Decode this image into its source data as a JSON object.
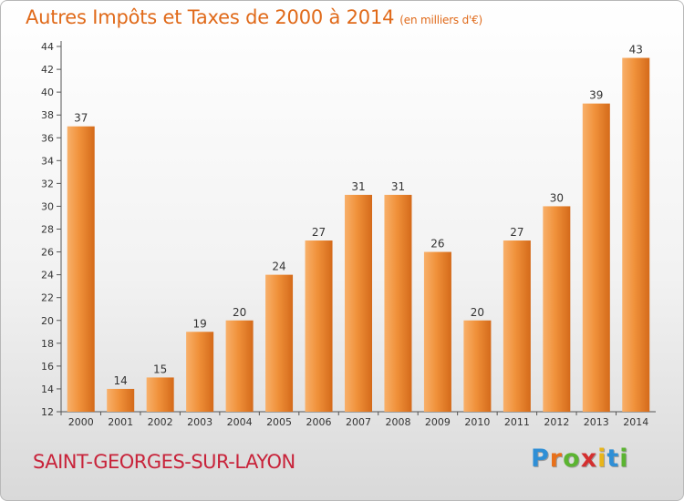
{
  "title": "Autres Impôts et Taxes de 2000 à 2014",
  "unit_note": "(en milliers d'€)",
  "commune": "SAINT-GEORGES-SUR-LAYON",
  "brand": {
    "letters": [
      "P",
      "r",
      "o",
      "x",
      "i",
      "t",
      "i"
    ],
    "colors": [
      "#2f8fd6",
      "#e8701a",
      "#5bb431",
      "#d42f2f",
      "#e8b51a",
      "#2f8fd6",
      "#5bb431"
    ]
  },
  "colors": {
    "bar": "#f0913a",
    "bar_light": "#f8b06a",
    "bar_dark": "#d46a1a",
    "title": "#e06a1a",
    "commune": "#c8233a"
  },
  "chart_data": {
    "type": "bar",
    "categories": [
      "2000",
      "2001",
      "2002",
      "2003",
      "2004",
      "2005",
      "2006",
      "2007",
      "2008",
      "2009",
      "2010",
      "2011",
      "2012",
      "2013",
      "2014"
    ],
    "values": [
      37,
      14,
      15,
      19,
      20,
      24,
      27,
      31,
      31,
      26,
      20,
      27,
      30,
      39,
      43
    ],
    "ylim": [
      12,
      44
    ],
    "yticks": [
      12,
      14,
      16,
      18,
      20,
      22,
      24,
      26,
      28,
      30,
      32,
      34,
      36,
      38,
      40,
      42,
      44
    ],
    "grid": false,
    "xlabel": "",
    "ylabel": ""
  }
}
